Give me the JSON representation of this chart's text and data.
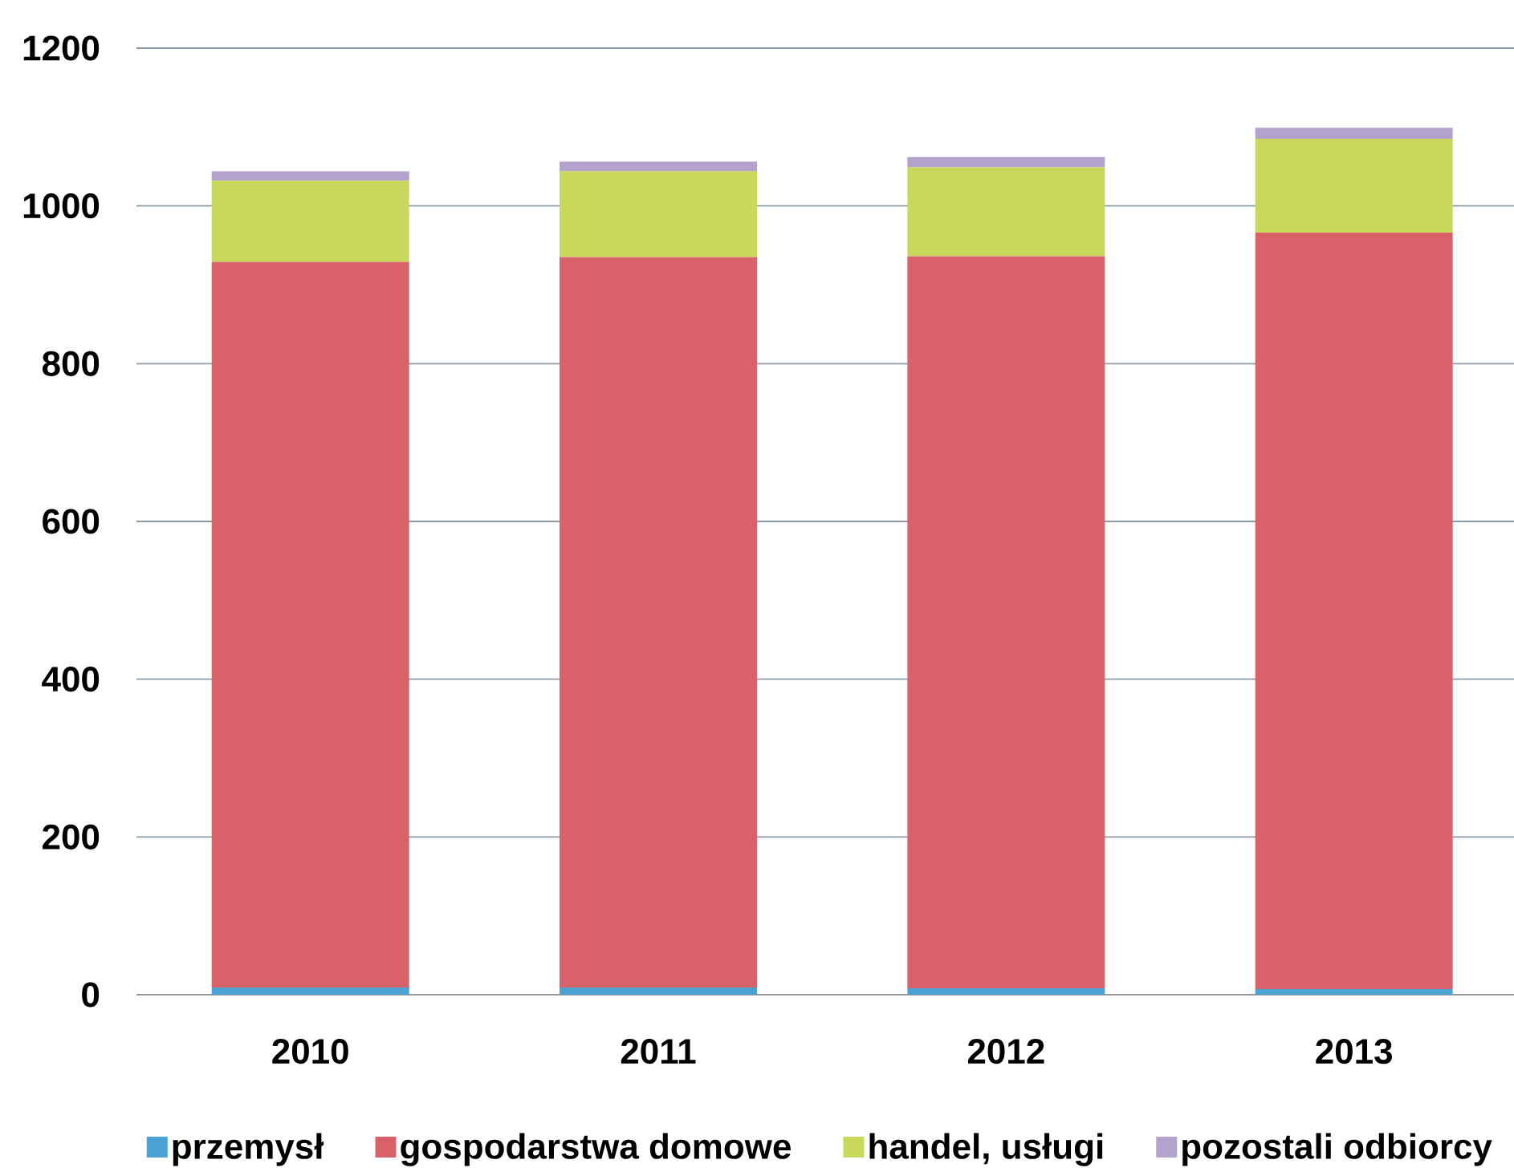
{
  "chart_data": {
    "type": "bar",
    "stacked": true,
    "categories": [
      "2010",
      "2011",
      "2012",
      "2013"
    ],
    "series": [
      {
        "name": "przemysł",
        "color": "#4ba3d3",
        "values": [
          9,
          9,
          8,
          7
        ]
      },
      {
        "name": "gospodarstwa domowe",
        "color": "#d9626a",
        "values": [
          920,
          926,
          928,
          959
        ]
      },
      {
        "name": "handel, usługi",
        "color": "#c8d85c",
        "values": [
          103,
          109,
          113,
          119
        ]
      },
      {
        "name": "pozostali odbiorcy",
        "color": "#b3a3cc",
        "values": [
          12,
          12,
          13,
          14
        ]
      }
    ],
    "ylim": [
      0,
      1200
    ],
    "yticks": [
      0,
      200,
      400,
      600,
      800,
      1000,
      1200
    ],
    "grid": "y",
    "legend": "bottom"
  }
}
